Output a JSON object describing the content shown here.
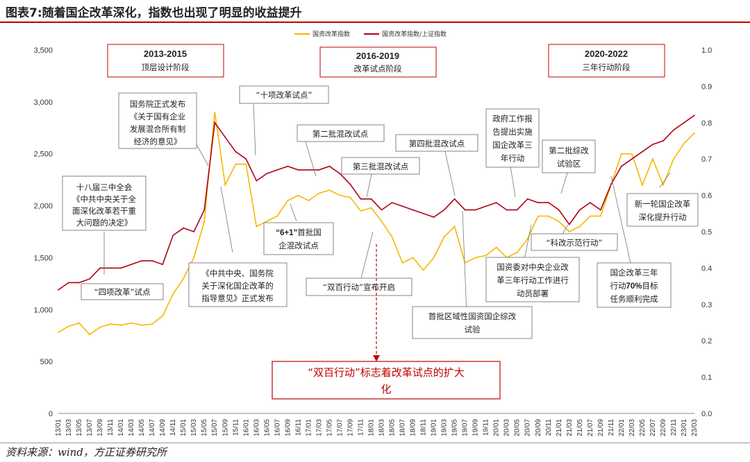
{
  "figure_title": "图表7:随着国企改革深化，指数也出现了明显的收益提升",
  "source_note": "资料来源：wind，方正证券研究所",
  "colors": {
    "guoqi": "#f5b800",
    "ratio": "#b00015",
    "accent_red": "#c00000",
    "box_border": "#666666"
  },
  "chart_data": {
    "type": "line",
    "left_axis": {
      "ylim": [
        0,
        3500
      ],
      "ticks": [
        "0",
        "500",
        "1,000",
        "1,500",
        "2,000",
        "2,500",
        "3,000",
        "3,500"
      ]
    },
    "right_axis": {
      "ylim": [
        0.0,
        1.0
      ],
      "ticks": [
        "0.0",
        "0.1",
        "0.2",
        "0.3",
        "0.4",
        "0.5",
        "0.6",
        "0.7",
        "0.8",
        "0.9",
        "1.0"
      ]
    },
    "x_ticks": [
      "13/01",
      "13/03",
      "13/05",
      "13/07",
      "13/09",
      "13/11",
      "14/01",
      "14/03",
      "14/05",
      "14/07",
      "14/09",
      "14/11",
      "15/01",
      "15/03",
      "15/05",
      "15/07",
      "15/09",
      "15/11",
      "16/01",
      "16/03",
      "16/05",
      "16/07",
      "16/09",
      "16/11",
      "17/01",
      "17/03",
      "17/05",
      "17/07",
      "17/09",
      "17/11",
      "18/01",
      "18/03",
      "18/05",
      "18/07",
      "18/09",
      "18/11",
      "19/01",
      "19/03",
      "19/05",
      "19/07",
      "19/09",
      "19/11",
      "20/01",
      "20/03",
      "20/05",
      "20/07",
      "20/09",
      "20/11",
      "21/01",
      "21/03",
      "21/05",
      "21/07",
      "21/09",
      "21/11",
      "22/01",
      "22/03",
      "22/05",
      "22/07",
      "22/09",
      "22/11",
      "23/01",
      "23/03"
    ],
    "series": [
      {
        "name": "国资改革指数",
        "axis": "left",
        "values": [
          780,
          840,
          870,
          760,
          830,
          860,
          850,
          870,
          850,
          860,
          940,
          1150,
          1300,
          1500,
          1850,
          2900,
          2200,
          2400,
          2400,
          1800,
          1850,
          1900,
          2050,
          2100,
          2050,
          2120,
          2150,
          2100,
          2080,
          1950,
          1980,
          1850,
          1700,
          1450,
          1500,
          1380,
          1500,
          1700,
          1800,
          1450,
          1500,
          1520,
          1600,
          1500,
          1550,
          1680,
          1900,
          1900,
          1850,
          1750,
          1800,
          1900,
          1900,
          2200,
          2500,
          2500,
          2200,
          2450,
          2200,
          2450,
          2600,
          2700
        ]
      },
      {
        "name": "国资改革指数/上证指数",
        "axis": "right",
        "values": [
          0.34,
          0.36,
          0.36,
          0.37,
          0.4,
          0.4,
          0.4,
          0.41,
          0.42,
          0.42,
          0.41,
          0.49,
          0.51,
          0.5,
          0.56,
          0.8,
          0.76,
          0.72,
          0.7,
          0.64,
          0.66,
          0.67,
          0.68,
          0.67,
          0.67,
          0.67,
          0.68,
          0.66,
          0.63,
          0.59,
          0.59,
          0.56,
          0.58,
          0.57,
          0.56,
          0.55,
          0.54,
          0.56,
          0.59,
          0.56,
          0.56,
          0.57,
          0.58,
          0.56,
          0.56,
          0.59,
          0.58,
          0.58,
          0.56,
          0.52,
          0.56,
          0.58,
          0.56,
          0.63,
          0.68,
          0.7,
          0.72,
          0.74,
          0.75,
          0.78,
          0.8,
          0.82
        ]
      }
    ],
    "phases": [
      {
        "title": "2013-2015",
        "subtitle": "顶层设计阶段"
      },
      {
        "title": "2016-2019",
        "subtitle": "改革试点阶段"
      },
      {
        "title": "2020-2022",
        "subtitle": "三年行动阶段"
      }
    ],
    "annotations": {
      "a1": [
        "十八届三中全会",
        "《中共中央关于全",
        "面深化改革若干重",
        "大问题的决定》"
      ],
      "a2": [
        "“四项改革”试点"
      ],
      "a3": [
        "国务院正式发布",
        "《关于国有企业",
        "发展混合所有制",
        "经济的意见》"
      ],
      "a4": [
        "《中共中央、国务院",
        "关于深化国企改革的",
        "指导意见》正式发布"
      ],
      "a5": [
        "“十项改革试点”"
      ],
      "a6": [
        "第二批混改试点"
      ],
      "a7_bold": "“6+1”",
      "a7_rest": "首批国",
      "a7_line2": "企混改试点",
      "a8": [
        "第三批混改试点"
      ],
      "a9": [
        "“双百行动”宣布开启"
      ],
      "a10": [
        "第四批混改试点"
      ],
      "a11": [
        "首批区域性国资国企综改",
        "试验"
      ],
      "a12": [
        "政府工作报",
        "告提出实施",
        "国企改革三",
        "年行动"
      ],
      "a13": [
        "国资委对中央企业改",
        "革三年行动工作进行",
        "动员部署"
      ],
      "a14": [
        "第二批综改",
        "试验区"
      ],
      "a15": [
        "“科改示范行动”"
      ],
      "a16_l1": "国企改革三年",
      "a16_pre": "行动",
      "a16_bold": "70%",
      "a16_post": "目标",
      "a16_l3": "任务顺利完成",
      "a17": [
        "新一轮国企改革",
        "深化提升行动"
      ],
      "big": [
        "“双百行动”标志着改革试点的扩大",
        "化"
      ]
    }
  }
}
